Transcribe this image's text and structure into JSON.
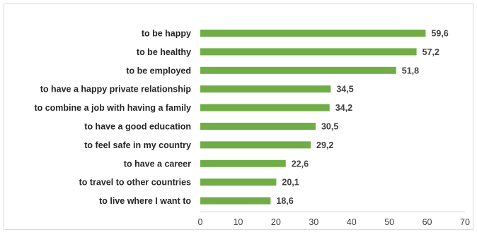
{
  "chart_data": {
    "type": "bar",
    "orientation": "horizontal",
    "categories": [
      "to be happy",
      "to be healthy",
      "to be employed",
      "to have a happy private relationship",
      "to combine a job with having a family",
      "to have a good education",
      "to feel safe in my country",
      "to have a career",
      "to travel to other countries",
      "to live where I want to"
    ],
    "values": [
      59.6,
      57.2,
      51.8,
      34.5,
      34.2,
      30.5,
      29.2,
      22.6,
      20.1,
      18.6
    ],
    "value_labels": [
      "59,6",
      "57,2",
      "51,8",
      "34,5",
      "34,2",
      "30,5",
      "29,2",
      "22,6",
      "20,1",
      "18,6"
    ],
    "xlim": [
      0,
      70
    ],
    "xticks": [
      "0",
      "10",
      "20",
      "30",
      "40",
      "50",
      "60",
      "70"
    ],
    "bar_color": "#70ad47",
    "grid": false,
    "legend": "none",
    "title": "",
    "xlabel": "",
    "ylabel": ""
  }
}
